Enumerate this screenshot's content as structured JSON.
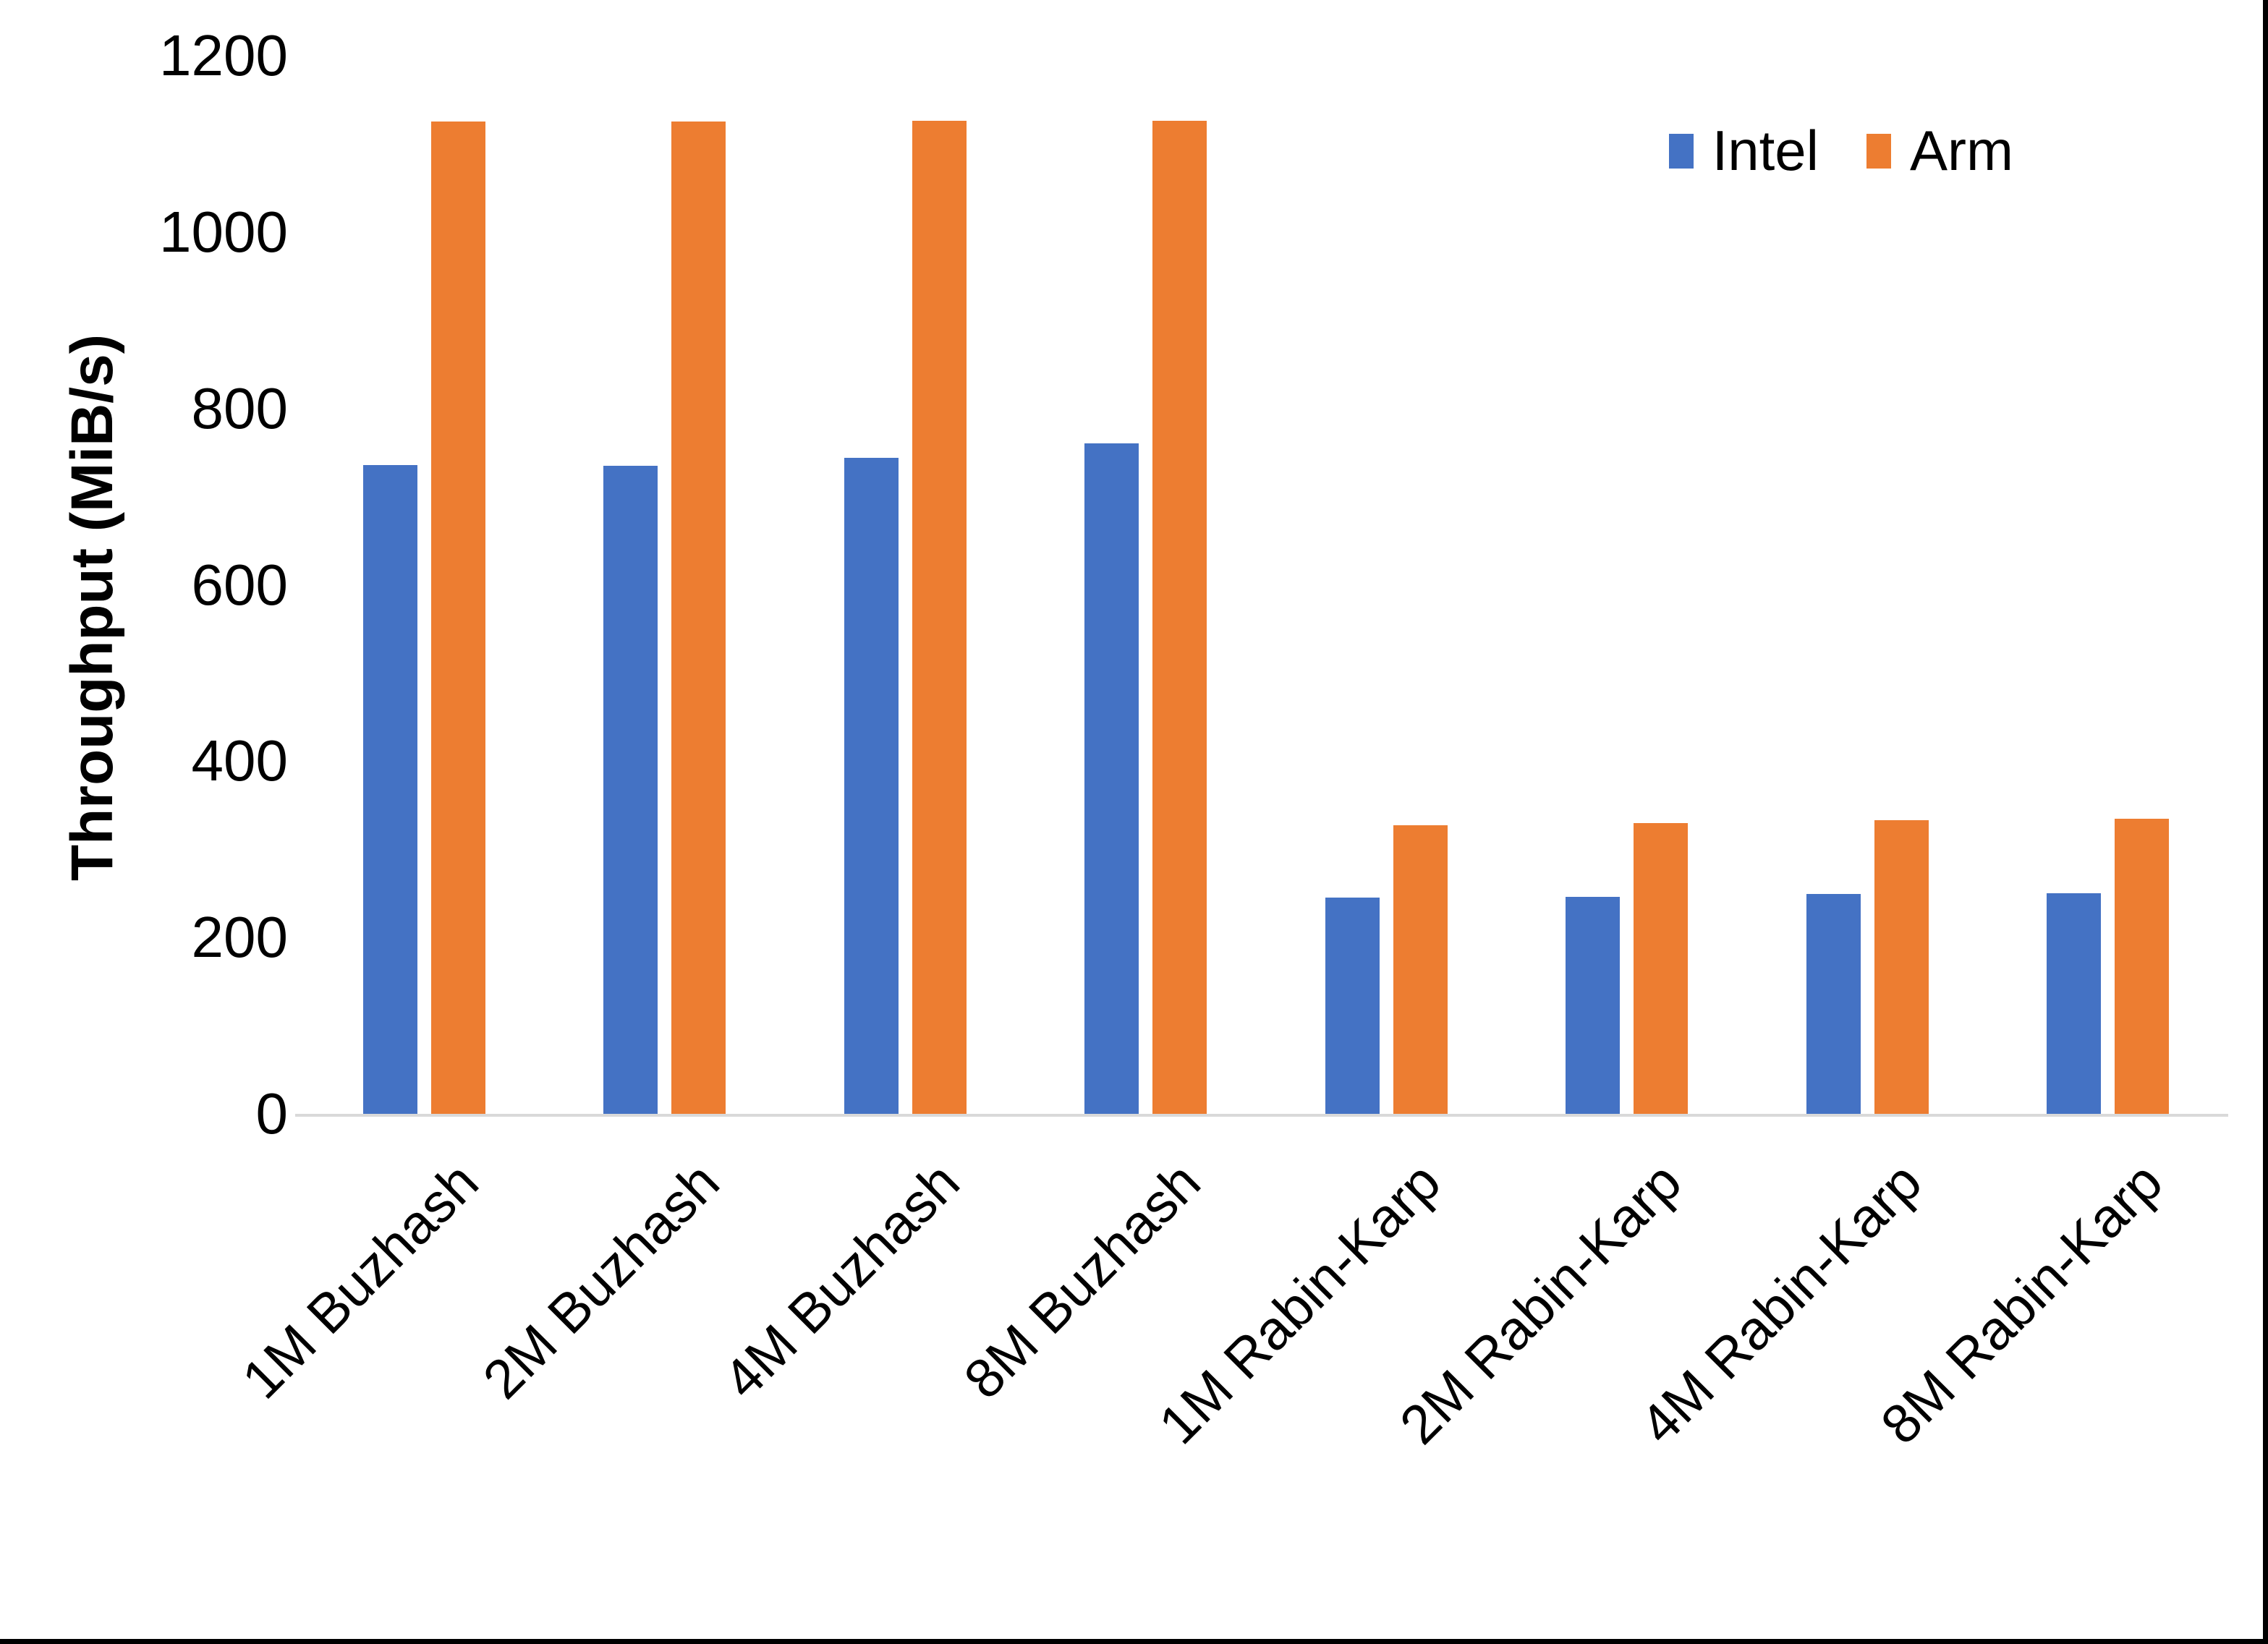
{
  "chart_data": {
    "type": "bar",
    "title": "",
    "categories": [
      "1M Buzhash",
      "2M Buzhash",
      "4M Buzhash",
      "8M Buzhash",
      "1M Rabin-Karp",
      "2M Rabin-Karp",
      "4M Rabin-Karp",
      "8M Rabin-Karp"
    ],
    "series": [
      {
        "name": "Intel",
        "color": "#4472C4",
        "values": [
          736,
          735,
          744,
          760,
          245,
          246,
          249,
          250
        ]
      },
      {
        "name": "Arm",
        "color": "#ED7D31",
        "values": [
          1125,
          1125,
          1126,
          1126,
          327,
          330,
          333,
          335
        ]
      }
    ],
    "xlabel": "",
    "ylabel": "Throughput (MiB/s)",
    "ylim": [
      0,
      1200
    ],
    "yticks": [
      0,
      200,
      400,
      600,
      800,
      1000,
      1200
    ],
    "grid": false,
    "legend_position": "top-right"
  },
  "colors": {
    "axis_line": "#D9D9D9",
    "text": "#000000",
    "background": "#FFFFFF",
    "frame_border": "#000000"
  }
}
